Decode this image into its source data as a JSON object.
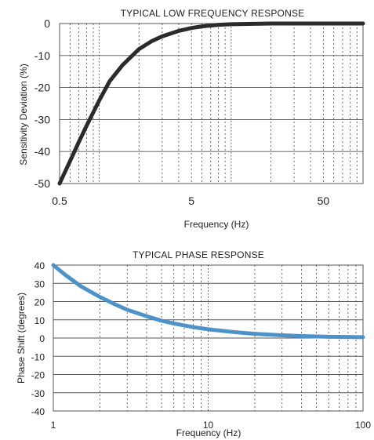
{
  "chart_data": [
    {
      "type": "line",
      "title": "TYPICAL LOW FREQUENCY RESPONSE",
      "xlabel": "Frequency (Hz)",
      "ylabel": "Sensitivity Deviation (%)",
      "x_scale": "log",
      "xlim": [
        0.5,
        100
      ],
      "ylim": [
        -50,
        0
      ],
      "x_ticks": [
        {
          "value": 0.5,
          "label": "0.5"
        },
        {
          "value": 5,
          "label": "5"
        },
        {
          "value": 50,
          "label": "50"
        }
      ],
      "y_ticks": [
        {
          "value": 0,
          "label": "0"
        },
        {
          "value": -10,
          "label": "-10"
        },
        {
          "value": -20,
          "label": "-20"
        },
        {
          "value": -30,
          "label": "-30"
        },
        {
          "value": -40,
          "label": "-40"
        },
        {
          "value": -50,
          "label": "-50"
        }
      ],
      "grid": true,
      "series": [
        {
          "x": [
            0.5,
            0.6,
            0.7,
            0.8,
            1.0,
            1.2,
            1.5,
            2.0,
            2.5,
            3.0,
            4.0,
            5.0,
            6.0,
            8.0,
            10,
            20,
            50,
            100
          ],
          "y": [
            -50,
            -43,
            -37,
            -32,
            -24,
            -18,
            -13,
            -8,
            -5.5,
            -4,
            -2.3,
            -1.4,
            -0.9,
            -0.4,
            -0.2,
            0,
            0,
            0
          ]
        }
      ]
    },
    {
      "type": "line",
      "title": "TYPICAL PHASE RESPONSE",
      "xlabel": "Frequency (Hz)",
      "ylabel": "Phase Shift (degrees)",
      "x_scale": "log",
      "xlim": [
        1,
        100
      ],
      "ylim": [
        -40,
        40
      ],
      "x_ticks": [
        {
          "value": 1,
          "label": "1"
        },
        {
          "value": 10,
          "label": "10"
        },
        {
          "value": 100,
          "label": "100"
        }
      ],
      "y_ticks": [
        {
          "value": 40,
          "label": "40"
        },
        {
          "value": 30,
          "label": "30"
        },
        {
          "value": 20,
          "label": "20"
        },
        {
          "value": 10,
          "label": "10"
        },
        {
          "value": 0,
          "label": "0"
        },
        {
          "value": -10,
          "label": "-10"
        },
        {
          "value": -20,
          "label": "-20"
        },
        {
          "value": -30,
          "label": "-30"
        },
        {
          "value": -40,
          "label": "-40"
        }
      ],
      "grid": true,
      "series": [
        {
          "x": [
            1,
            1.2,
            1.5,
            2,
            2.5,
            3,
            4,
            5,
            6,
            8,
            10,
            15,
            20,
            30,
            40,
            60,
            100
          ],
          "y": [
            40,
            34.5,
            28.5,
            22.5,
            18.5,
            15.5,
            12,
            9.5,
            8,
            6,
            4.8,
            3.2,
            2.3,
            1.5,
            1.1,
            0.7,
            0.5
          ]
        }
      ]
    }
  ]
}
